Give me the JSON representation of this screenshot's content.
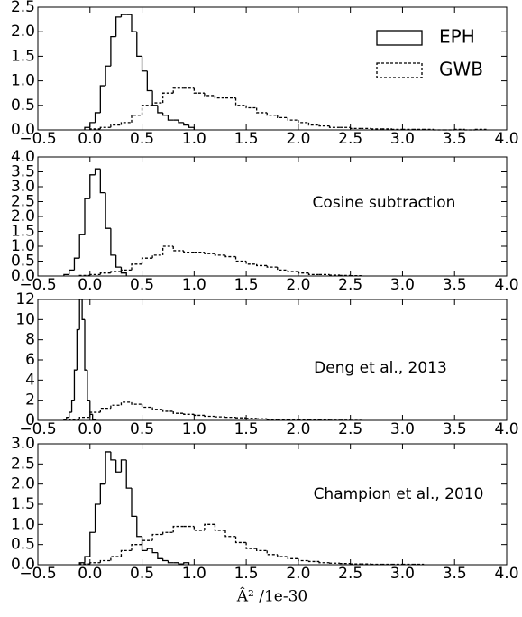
{
  "chart_data": [
    {
      "type": "histogram",
      "legend": "upper right",
      "xlim": [
        -0.5,
        4.0
      ],
      "xticks": [
        {
          "value": -0.5,
          "label": "−0.5"
        },
        {
          "value": 0,
          "label": "0.0"
        },
        {
          "value": 0.5,
          "label": "0.5"
        },
        {
          "value": 1,
          "label": "1.0"
        },
        {
          "value": 1.5,
          "label": "1.5"
        },
        {
          "value": 2,
          "label": "2.0"
        },
        {
          "value": 2.5,
          "label": "2.5"
        },
        {
          "value": 3,
          "label": "3.0"
        },
        {
          "value": 3.5,
          "label": "3.5"
        },
        {
          "value": 4,
          "label": "4.0"
        }
      ],
      "ylim": [
        0,
        2.5
      ],
      "yticks": [
        {
          "value": 0,
          "label": "0.0"
        },
        {
          "value": 0.5,
          "label": "0.5"
        },
        {
          "value": 1,
          "label": "1.0"
        },
        {
          "value": 1.5,
          "label": "1.5"
        },
        {
          "value": 2,
          "label": "2.0"
        },
        {
          "value": 2.5,
          "label": "2.5"
        }
      ],
      "series": [
        {
          "name": "EPH",
          "color": "#000000",
          "linestyle": "solid",
          "bins": [
            -0.05,
            0,
            0.05,
            0.1,
            0.15,
            0.2,
            0.25,
            0.3,
            0.35,
            0.4,
            0.45,
            0.5,
            0.55,
            0.6,
            0.65,
            0.7,
            0.75,
            0.8,
            0.85,
            0.9,
            0.95,
            1.0
          ],
          "values": [
            0.05,
            0.15,
            0.35,
            0.9,
            1.3,
            1.9,
            2.3,
            2.35,
            2.35,
            2.0,
            1.5,
            1.2,
            0.8,
            0.5,
            0.35,
            0.3,
            0.2,
            0.2,
            0.15,
            0.1,
            0.05
          ]
        },
        {
          "name": "GWB",
          "color": "#000000",
          "linestyle": "dashed",
          "bins": [
            0,
            0.1,
            0.2,
            0.3,
            0.4,
            0.5,
            0.6,
            0.7,
            0.8,
            0.9,
            1.0,
            1.1,
            1.2,
            1.3,
            1.4,
            1.5,
            1.6,
            1.7,
            1.8,
            1.9,
            2.0,
            2.1,
            2.2,
            2.3,
            2.4,
            2.5,
            2.6,
            2.7,
            2.8,
            2.9,
            3.0,
            3.1,
            3.2,
            3.3,
            3.4,
            3.5,
            3.6,
            3.7,
            3.8
          ],
          "values": [
            0.02,
            0.05,
            0.1,
            0.15,
            0.3,
            0.5,
            0.55,
            0.75,
            0.85,
            0.85,
            0.75,
            0.7,
            0.65,
            0.65,
            0.5,
            0.45,
            0.35,
            0.3,
            0.25,
            0.2,
            0.15,
            0.1,
            0.08,
            0.05,
            0.05,
            0.03,
            0.03,
            0.02,
            0.02,
            0.01,
            0.01,
            0.01,
            0.01,
            0,
            0,
            0.01,
            0,
            0.01
          ]
        }
      ]
    },
    {
      "type": "histogram",
      "annotation": "Cosine subtraction",
      "xlim": [
        -0.5,
        4.0
      ],
      "xticks": [
        {
          "value": -0.5,
          "label": "−0.5"
        },
        {
          "value": 0,
          "label": "0.0"
        },
        {
          "value": 0.5,
          "label": "0.5"
        },
        {
          "value": 1,
          "label": "1.0"
        },
        {
          "value": 1.5,
          "label": "1.5"
        },
        {
          "value": 2,
          "label": "2.0"
        },
        {
          "value": 2.5,
          "label": "2.5"
        },
        {
          "value": 3,
          "label": "3.0"
        },
        {
          "value": 3.5,
          "label": "3.5"
        },
        {
          "value": 4,
          "label": "4.0"
        }
      ],
      "ylim": [
        0,
        4.0
      ],
      "yticks": [
        {
          "value": 0,
          "label": "0.0"
        },
        {
          "value": 0.5,
          "label": "0.5"
        },
        {
          "value": 1,
          "label": "1.0"
        },
        {
          "value": 1.5,
          "label": "1.5"
        },
        {
          "value": 2,
          "label": "2.0"
        },
        {
          "value": 2.5,
          "label": "2.5"
        },
        {
          "value": 3,
          "label": "3.0"
        },
        {
          "value": 3.5,
          "label": "3.5"
        },
        {
          "value": 4,
          "label": "4.0"
        }
      ],
      "series": [
        {
          "color": "#000000",
          "linestyle": "solid",
          "bins": [
            -0.25,
            -0.2,
            -0.15,
            -0.1,
            -0.05,
            0,
            0.05,
            0.1,
            0.15,
            0.2,
            0.25,
            0.3,
            0.35
          ],
          "values": [
            0.05,
            0.2,
            0.6,
            1.4,
            2.6,
            3.4,
            3.6,
            2.8,
            1.6,
            0.7,
            0.3,
            0.1
          ]
        },
        {
          "color": "#000000",
          "linestyle": "dashed",
          "bins": [
            -0.1,
            0,
            0.1,
            0.2,
            0.3,
            0.4,
            0.5,
            0.6,
            0.7,
            0.8,
            0.9,
            1.0,
            1.1,
            1.2,
            1.3,
            1.4,
            1.5,
            1.6,
            1.7,
            1.8,
            1.9,
            2.0,
            2.1,
            2.2,
            2.3,
            2.4,
            2.5,
            2.6
          ],
          "values": [
            0.02,
            0.05,
            0.1,
            0.15,
            0.2,
            0.4,
            0.6,
            0.7,
            1.0,
            0.85,
            0.8,
            0.8,
            0.75,
            0.7,
            0.65,
            0.5,
            0.4,
            0.35,
            0.3,
            0.2,
            0.15,
            0.1,
            0.05,
            0.05,
            0.03,
            0.02,
            0.01
          ]
        }
      ]
    },
    {
      "type": "histogram",
      "annotation": "Deng et al., 2013",
      "xlim": [
        -0.5,
        4.0
      ],
      "xticks": [
        {
          "value": -0.5,
          "label": "−0.5"
        },
        {
          "value": 0,
          "label": "0.0"
        },
        {
          "value": 0.5,
          "label": "0.5"
        },
        {
          "value": 1,
          "label": "1.0"
        },
        {
          "value": 1.5,
          "label": "1.5"
        },
        {
          "value": 2,
          "label": "2.0"
        },
        {
          "value": 2.5,
          "label": "2.5"
        },
        {
          "value": 3,
          "label": "3.0"
        },
        {
          "value": 3.5,
          "label": "3.5"
        },
        {
          "value": 4,
          "label": "4.0"
        }
      ],
      "ylim": [
        0,
        12
      ],
      "yticks": [
        0,
        2,
        4,
        6,
        8,
        10,
        12
      ],
      "series": [
        {
          "color": "#000000",
          "linestyle": "solid",
          "bins": [
            -0.25,
            -0.225,
            -0.2,
            -0.175,
            -0.15,
            -0.125,
            -0.1,
            -0.075,
            -0.05,
            -0.025,
            0,
            0.025,
            0.05
          ],
          "values": [
            0.1,
            0.3,
            0.8,
            2,
            5,
            9,
            12,
            10,
            5,
            2,
            0.6,
            0.1
          ]
        },
        {
          "color": "#000000",
          "linestyle": "dashed",
          "bins": [
            -0.2,
            -0.1,
            0,
            0.1,
            0.2,
            0.3,
            0.4,
            0.5,
            0.6,
            0.7,
            0.8,
            0.9,
            1.0,
            1.1,
            1.2,
            1.3,
            1.4,
            1.5,
            1.6,
            1.7,
            1.8,
            1.9,
            2.0,
            2.1,
            2.2,
            2.3,
            2.4,
            2.5,
            2.6
          ],
          "values": [
            0.1,
            0.3,
            0.8,
            1.2,
            1.5,
            1.8,
            1.6,
            1.3,
            1.1,
            0.9,
            0.7,
            0.6,
            0.5,
            0.4,
            0.35,
            0.3,
            0.25,
            0.2,
            0.15,
            0.1,
            0.1,
            0.08,
            0.05,
            0.05,
            0.03,
            0.02,
            0.02,
            0.01
          ]
        }
      ]
    },
    {
      "type": "histogram",
      "annotation": "Champion et al., 2010",
      "xlabel": "Â² /1e-30",
      "xlim": [
        -0.5,
        4.0
      ],
      "xticks": [
        {
          "value": -0.5,
          "label": "−0.5"
        },
        {
          "value": 0,
          "label": "0.0"
        },
        {
          "value": 0.5,
          "label": "0.5"
        },
        {
          "value": 1,
          "label": "1.0"
        },
        {
          "value": 1.5,
          "label": "1.5"
        },
        {
          "value": 2,
          "label": "2.0"
        },
        {
          "value": 2.5,
          "label": "2.5"
        },
        {
          "value": 3,
          "label": "3.0"
        },
        {
          "value": 3.5,
          "label": "3.5"
        },
        {
          "value": 4,
          "label": "4.0"
        }
      ],
      "ylim": [
        0,
        3.0
      ],
      "yticks": [
        {
          "value": 0,
          "label": "0.0"
        },
        {
          "value": 0.5,
          "label": "0.5"
        },
        {
          "value": 1,
          "label": "1.0"
        },
        {
          "value": 1.5,
          "label": "1.5"
        },
        {
          "value": 2,
          "label": "2.0"
        },
        {
          "value": 2.5,
          "label": "2.5"
        },
        {
          "value": 3,
          "label": "3.0"
        }
      ],
      "series": [
        {
          "color": "#000000",
          "linestyle": "solid",
          "bins": [
            -0.1,
            -0.05,
            0,
            0.05,
            0.1,
            0.15,
            0.2,
            0.25,
            0.3,
            0.35,
            0.4,
            0.45,
            0.5,
            0.55,
            0.6,
            0.65,
            0.7,
            0.75,
            0.8,
            0.85,
            0.9,
            0.95
          ],
          "values": [
            0.05,
            0.2,
            0.8,
            1.5,
            2.0,
            2.8,
            2.6,
            2.3,
            2.6,
            1.9,
            1.2,
            0.7,
            0.35,
            0.4,
            0.3,
            0.15,
            0.1,
            0.05,
            0.05,
            0.02,
            0.05
          ]
        },
        {
          "color": "#000000",
          "linestyle": "dashed",
          "bins": [
            -0.1,
            0,
            0.1,
            0.2,
            0.3,
            0.4,
            0.5,
            0.6,
            0.7,
            0.8,
            0.9,
            1.0,
            1.1,
            1.2,
            1.3,
            1.4,
            1.5,
            1.6,
            1.7,
            1.8,
            1.9,
            2.0,
            2.1,
            2.2,
            2.3,
            2.4,
            2.5,
            2.6,
            2.7,
            2.8,
            2.9,
            3.0,
            3.1,
            3.2
          ],
          "values": [
            0.02,
            0.05,
            0.1,
            0.2,
            0.35,
            0.5,
            0.6,
            0.75,
            0.8,
            0.95,
            0.95,
            0.85,
            1.0,
            0.85,
            0.7,
            0.55,
            0.4,
            0.35,
            0.25,
            0.2,
            0.15,
            0.1,
            0.08,
            0.05,
            0.04,
            0.03,
            0.02,
            0.02,
            0.01,
            0.01,
            0.01,
            0.01,
            0.01
          ]
        }
      ]
    }
  ]
}
